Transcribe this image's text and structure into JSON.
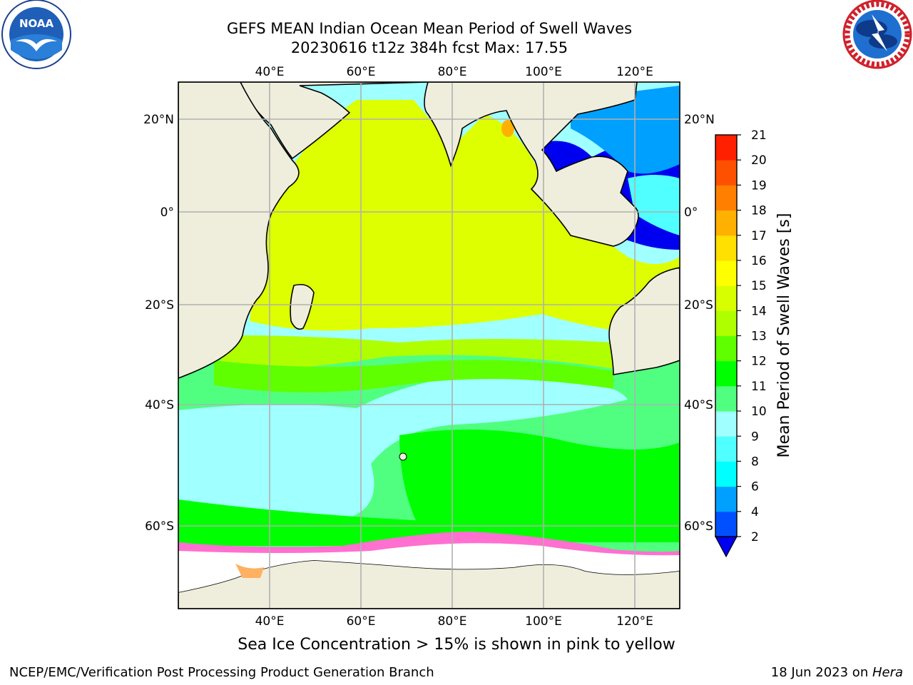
{
  "header": {
    "title_line1": "GEFS MEAN Indian Ocean Mean Period of Swell Waves",
    "title_line2": "20230616 t12z 384h fcst   Max: 17.55"
  },
  "map": {
    "lon_ticks": [
      "40°E",
      "60°E",
      "80°E",
      "100°E",
      "120°E"
    ],
    "lat_ticks": [
      "20°N",
      "0°",
      "20°S",
      "40°S",
      "60°S"
    ],
    "colors": {
      "land": "#efeedd",
      "ocean_white": "#ffffff",
      "grid": "#b0b0b0"
    }
  },
  "colorbar": {
    "label": "Mean Period of Swell Waves [s]",
    "ticks": [
      "2",
      "4",
      "6",
      "8",
      "9",
      "10",
      "11",
      "12",
      "13",
      "14",
      "15",
      "16",
      "17",
      "18",
      "19",
      "20",
      "21"
    ],
    "colors": [
      "#0050ff",
      "#00a0ff",
      "#00ffff",
      "#50ffff",
      "#a0ffff",
      "#50ff80",
      "#00ff00",
      "#60ff00",
      "#b0ff00",
      "#d8ff00",
      "#ffff00",
      "#ffe000",
      "#ffb000",
      "#ff8000",
      "#ff5000",
      "#ff2000"
    ],
    "under_color": "#0000f0"
  },
  "caption": "Sea Ice Concentration > 15% is shown in pink to yellow",
  "footer": {
    "left": "NCEP/EMC/Verification Post Processing Product Generation Branch",
    "right_prefix": "18 Jun 2023 on ",
    "right_host": "Hera"
  },
  "logos": {
    "noaa_text": "NOAA",
    "nws_ring_text": "NATIONAL WEATHER SERVICE"
  }
}
